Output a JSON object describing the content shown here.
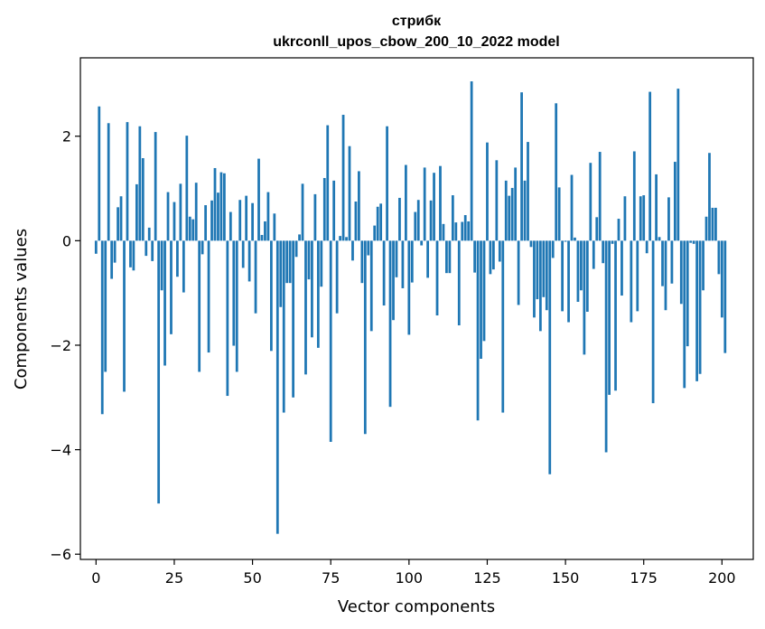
{
  "chart_data": {
    "type": "bar",
    "title": "стрибк",
    "subtitle": "ukrconll_upos_cbow_200_10_2022 model",
    "xlabel": "Vector components",
    "ylabel": "Components values",
    "xlim": [
      -5,
      210
    ],
    "ylim": [
      -6.1,
      3.5
    ],
    "xticks": [
      0,
      25,
      50,
      75,
      100,
      125,
      150,
      175,
      200
    ],
    "yticks": [
      -6,
      -4,
      -2,
      0,
      2
    ],
    "ytick_labels": [
      "−6",
      "−4",
      "−2",
      "0",
      "2"
    ],
    "bar_color": "#1f77b4",
    "grid": false,
    "values": [
      -0.25,
      2.57,
      -3.32,
      -2.51,
      2.25,
      -0.73,
      -0.42,
      0.64,
      0.85,
      -2.89,
      2.27,
      -0.51,
      -0.57,
      1.08,
      2.19,
      1.58,
      -0.29,
      0.25,
      -0.39,
      2.08,
      -5.03,
      -0.95,
      -2.39,
      0.93,
      -1.79,
      0.74,
      -0.69,
      1.09,
      -0.99,
      2.01,
      0.46,
      0.41,
      1.11,
      -2.51,
      -0.26,
      0.68,
      -2.14,
      0.77,
      1.39,
      0.92,
      1.31,
      1.29,
      -2.97,
      0.55,
      -2.01,
      -2.51,
      0.78,
      -0.52,
      0.86,
      -0.78,
      0.72,
      -1.39,
      1.57,
      0.11,
      0.37,
      0.93,
      -2.11,
      0.52,
      -5.61,
      -1.27,
      -3.29,
      -0.81,
      -0.81,
      -3.0,
      -0.31,
      0.12,
      1.09,
      -2.56,
      -0.74,
      -1.85,
      0.89,
      -2.05,
      -0.88,
      1.2,
      2.21,
      -3.85,
      1.15,
      -1.39,
      0.09,
      2.41,
      0.07,
      1.81,
      -0.38,
      0.75,
      1.33,
      -0.81,
      -3.7,
      -0.28,
      -1.73,
      0.29,
      0.65,
      0.71,
      -1.24,
      2.19,
      -3.18,
      -1.52,
      -0.7,
      0.82,
      -0.91,
      1.45,
      -1.8,
      -0.8,
      0.55,
      0.78,
      -0.09,
      1.4,
      -0.71,
      0.77,
      1.3,
      -1.43,
      1.43,
      0.32,
      -0.62,
      -0.62,
      0.87,
      0.35,
      -1.62,
      0.36,
      0.49,
      0.37,
      3.05,
      -0.61,
      -3.44,
      -2.26,
      -1.92,
      1.88,
      -0.64,
      -0.55,
      1.54,
      -0.4,
      -3.29,
      1.15,
      0.86,
      1.01,
      1.4,
      -1.23,
      2.84,
      1.15,
      1.89,
      -0.12,
      -1.47,
      -1.12,
      -1.73,
      -1.08,
      -1.33,
      -4.47,
      -0.33,
      2.63,
      1.02,
      -1.35,
      -0.02,
      -1.56,
      1.26,
      0.06,
      -1.17,
      -0.95,
      -2.18,
      -1.36,
      1.49,
      -0.54,
      0.45,
      1.7,
      -0.43,
      -4.05,
      -2.95,
      -0.06,
      -2.87,
      0.42,
      -1.05,
      0.85,
      0.0,
      -1.56,
      1.71,
      -1.35,
      0.85,
      0.87,
      -0.24,
      2.85,
      -3.11,
      1.27,
      0.07,
      -0.87,
      -1.33,
      0.83,
      -0.82,
      1.51,
      2.91,
      -1.21,
      -2.82,
      -2.02,
      -0.04,
      -0.06,
      -2.69,
      -2.55,
      -0.95,
      0.46,
      1.68,
      0.63,
      0.63,
      -0.64,
      -1.47,
      -2.15
    ]
  }
}
